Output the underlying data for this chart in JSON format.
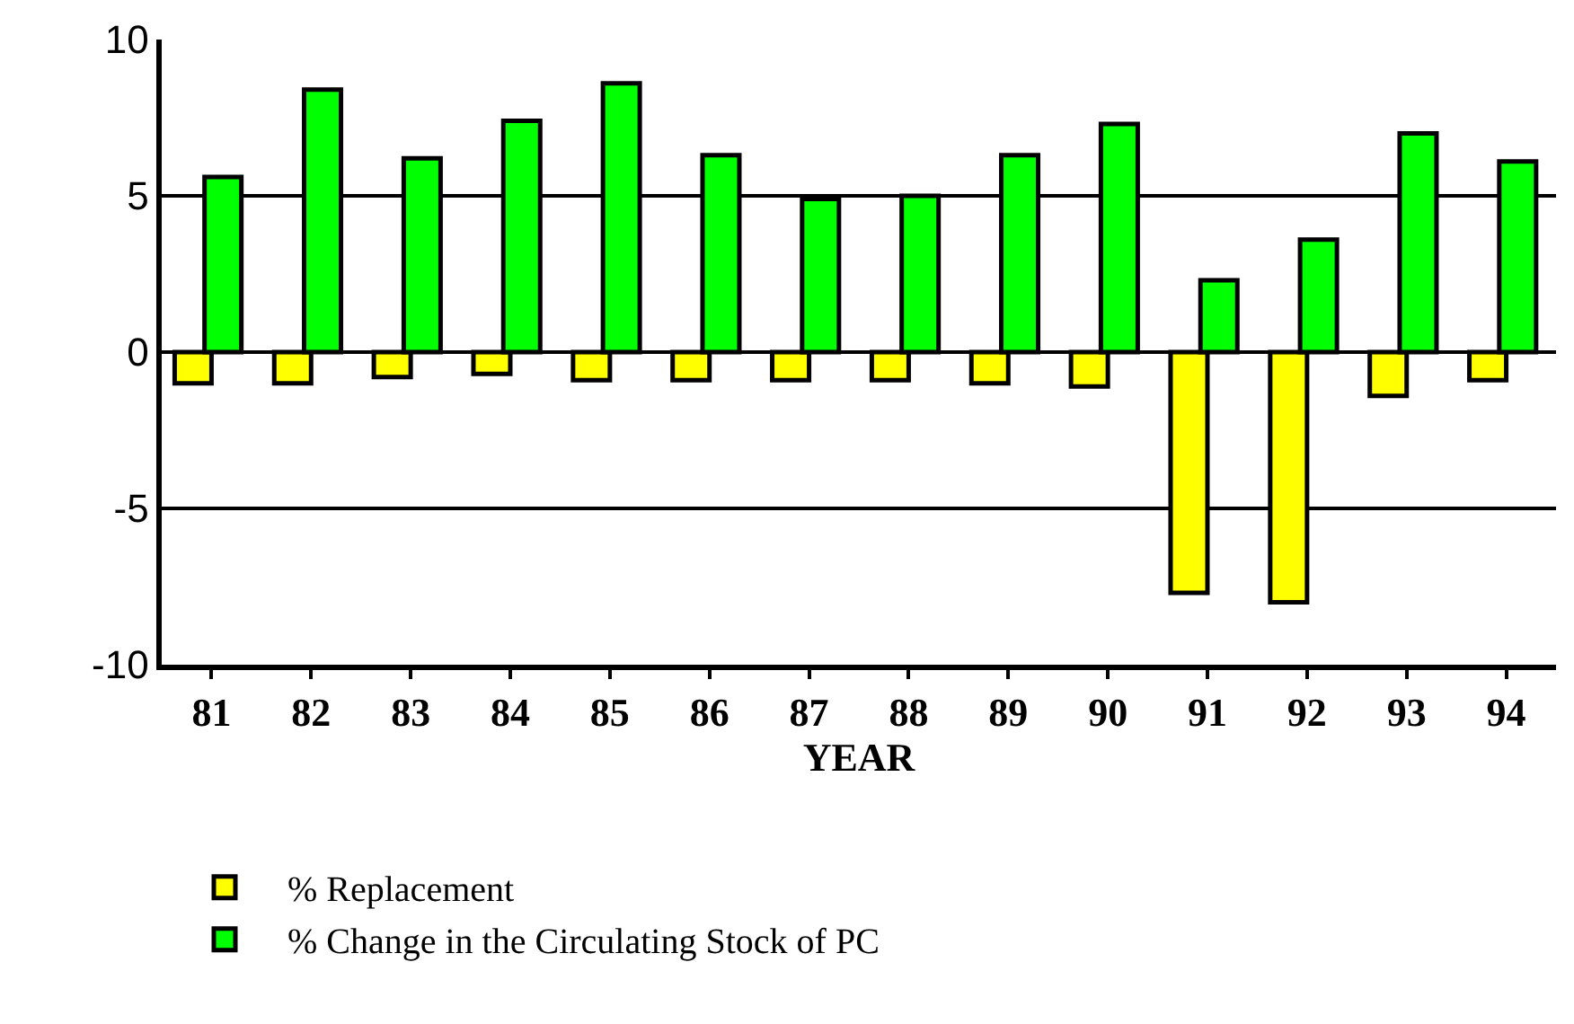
{
  "chart_data": {
    "type": "bar",
    "xlabel": "YEAR",
    "categories": [
      "81",
      "82",
      "83",
      "84",
      "85",
      "86",
      "87",
      "88",
      "89",
      "90",
      "91",
      "92",
      "93",
      "94"
    ],
    "series": [
      {
        "name": "% Replacement",
        "color": "#ffff00",
        "values": [
          -1.0,
          -1.0,
          -0.8,
          -0.7,
          -0.9,
          -0.9,
          -0.9,
          -0.9,
          -1.0,
          -1.1,
          -7.7,
          -8.0,
          -1.4,
          -0.9
        ]
      },
      {
        "name": "% Change in the Circulating Stock of PC",
        "color": "#00ff00",
        "values": [
          5.6,
          8.4,
          6.2,
          7.4,
          8.6,
          6.3,
          4.9,
          5.0,
          6.3,
          7.3,
          2.3,
          3.6,
          7.0,
          6.1
        ]
      }
    ],
    "ylim": [
      -10,
      10
    ],
    "yticks": [
      {
        "value": -10,
        "label": "-10"
      },
      -5,
      0,
      5,
      10
    ],
    "grid": "y",
    "legend": "bottom left"
  }
}
